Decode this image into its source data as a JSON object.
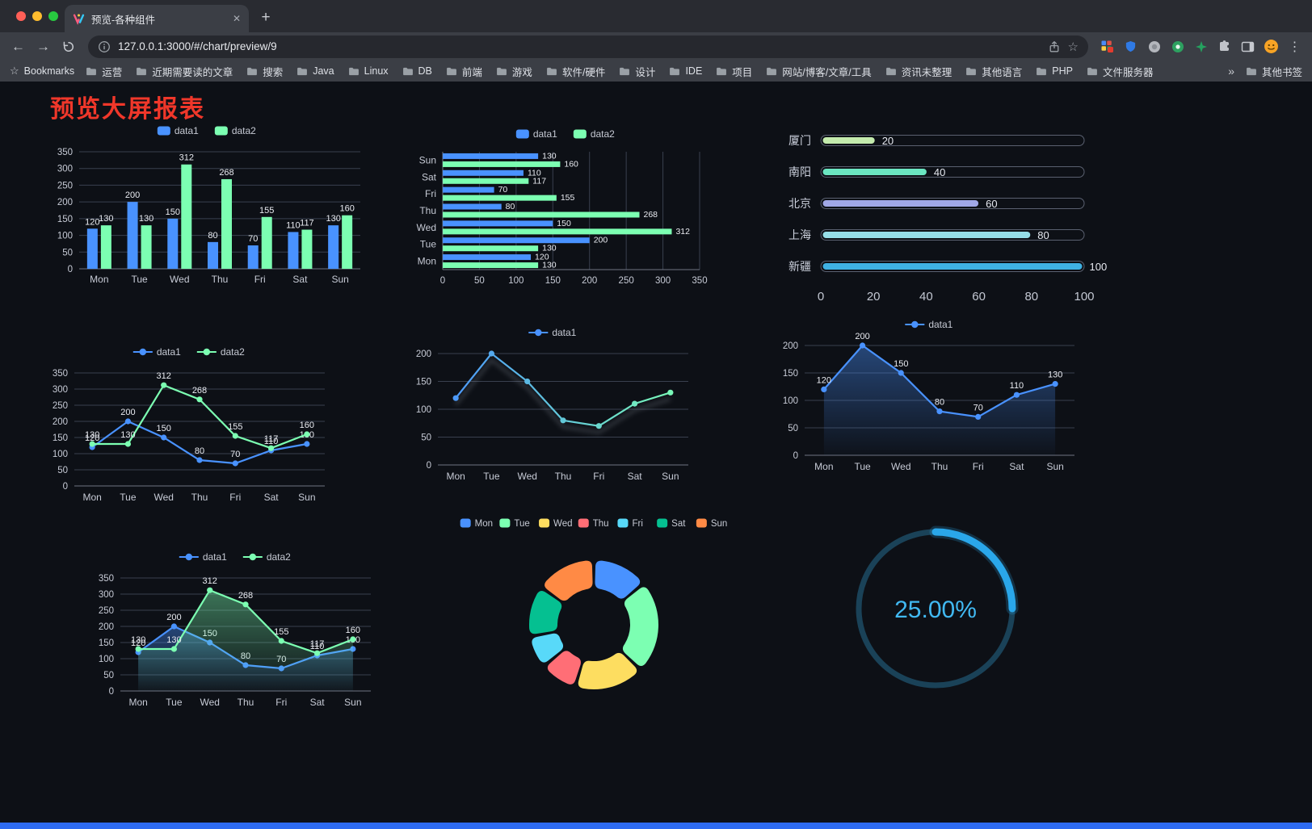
{
  "browser": {
    "tab_title": "预览-各种组件",
    "url": "127.0.0.1:3000/#/chart/preview/9",
    "new_tab_label": "+",
    "close_tab_label": "✕",
    "back_label": "←",
    "forward_label": "→",
    "menu_label": "⋮",
    "star_label": "☆",
    "overflow_label": "»",
    "bookmarks_label": "Bookmarks",
    "bookmarks": [
      "运营",
      "近期需要读的文章",
      "搜索",
      "Java",
      "Linux",
      "DB",
      "前端",
      "游戏",
      "软件/硬件",
      "设计",
      "IDE",
      "项目",
      "网站/博客/文章/工具",
      "资讯未整理",
      "其他语言",
      "PHP",
      "文件服务器"
    ],
    "other_bookmarks": "其他书签"
  },
  "page": {
    "title": "预览大屏报表",
    "title_color": "#f0372a",
    "background": "#0d1016",
    "footer_color": "#2e6bf0"
  },
  "chart_data": [
    {
      "id": "grouped-bar",
      "type": "bar",
      "legend": true,
      "value_labels": true,
      "categories": [
        "Mon",
        "Tue",
        "Wed",
        "Thu",
        "Fri",
        "Sat",
        "Sun"
      ],
      "ylim": [
        0,
        350
      ],
      "ystep": 50,
      "series": [
        {
          "name": "data1",
          "color": "#4992ff",
          "values": [
            120,
            200,
            150,
            80,
            70,
            110,
            130
          ]
        },
        {
          "name": "data2",
          "color": "#7cffb2",
          "values": [
            130,
            130,
            312,
            268,
            155,
            117,
            160
          ]
        }
      ]
    },
    {
      "id": "grouped-horizontal-bar",
      "type": "hbar",
      "legend": true,
      "value_labels": true,
      "categories": [
        "Mon",
        "Tue",
        "Wed",
        "Thu",
        "Fri",
        "Sat",
        "Sun"
      ],
      "xlim": [
        0,
        350
      ],
      "xstep": 50,
      "series": [
        {
          "name": "data1",
          "color": "#4992ff",
          "values": [
            120,
            200,
            150,
            80,
            70,
            110,
            130
          ]
        },
        {
          "name": "data2",
          "color": "#7cffb2",
          "values": [
            130,
            130,
            312,
            268,
            155,
            117,
            160
          ]
        }
      ]
    },
    {
      "id": "capsule-rank",
      "type": "capsule",
      "xlim": [
        0,
        100
      ],
      "xticks": [
        0,
        20,
        40,
        60,
        80,
        100
      ],
      "rows": [
        {
          "label": "厦门",
          "value": 20,
          "color": "#c4ebad"
        },
        {
          "label": "南阳",
          "value": 40,
          "color": "#6be6c1"
        },
        {
          "label": "北京",
          "value": 60,
          "color": "#a0a7e6"
        },
        {
          "label": "上海",
          "value": 80,
          "color": "#96dee8"
        },
        {
          "label": "新疆",
          "value": 100,
          "color": "#3fb1e3"
        }
      ]
    },
    {
      "id": "double-line",
      "type": "line",
      "legend": true,
      "value_labels": true,
      "categories": [
        "Mon",
        "Tue",
        "Wed",
        "Thu",
        "Fri",
        "Sat",
        "Sun"
      ],
      "ylim": [
        0,
        350
      ],
      "ystep": 50,
      "series": [
        {
          "name": "data1",
          "color": "#4992ff",
          "values": [
            120,
            200,
            150,
            80,
            70,
            110,
            130
          ]
        },
        {
          "name": "data2",
          "color": "#7cffb2",
          "values": [
            130,
            130,
            312,
            268,
            155,
            117,
            160
          ]
        }
      ]
    },
    {
      "id": "gradient-line",
      "type": "line",
      "legend": true,
      "value_labels": false,
      "shadow": true,
      "categories": [
        "Mon",
        "Tue",
        "Wed",
        "Thu",
        "Fri",
        "Sat",
        "Sun"
      ],
      "ylim": [
        0,
        200
      ],
      "ystep": 50,
      "series": [
        {
          "name": "data1",
          "color": "#4992ff",
          "color_end": "#7cffb2",
          "values": [
            120,
            200,
            150,
            80,
            70,
            110,
            130
          ]
        }
      ]
    },
    {
      "id": "area-line",
      "type": "line",
      "legend": true,
      "value_labels": true,
      "categories": [
        "Mon",
        "Tue",
        "Wed",
        "Thu",
        "Fri",
        "Sat",
        "Sun"
      ],
      "ylim": [
        0,
        200
      ],
      "ystep": 50,
      "series": [
        {
          "name": "data1",
          "color": "#4992ff",
          "area": true,
          "values": [
            120,
            200,
            150,
            80,
            70,
            110,
            130
          ]
        }
      ]
    },
    {
      "id": "double-area-line",
      "type": "line",
      "legend": true,
      "value_labels": true,
      "categories": [
        "Mon",
        "Tue",
        "Wed",
        "Thu",
        "Fri",
        "Sat",
        "Sun"
      ],
      "ylim": [
        0,
        350
      ],
      "ystep": 50,
      "series": [
        {
          "name": "data1",
          "color": "#4992ff",
          "area": true,
          "values": [
            120,
            200,
            150,
            80,
            70,
            110,
            130
          ]
        },
        {
          "name": "data2",
          "color": "#7cffb2",
          "area": true,
          "values": [
            130,
            130,
            312,
            268,
            155,
            117,
            160
          ]
        }
      ]
    },
    {
      "id": "donut",
      "type": "donut",
      "legend": true,
      "items": [
        {
          "name": "Mon",
          "value": 120,
          "color": "#4992ff"
        },
        {
          "name": "Tue",
          "value": 200,
          "color": "#7cffb2"
        },
        {
          "name": "Wed",
          "value": 150,
          "color": "#fddd60"
        },
        {
          "name": "Thu",
          "value": 80,
          "color": "#ff6e76"
        },
        {
          "name": "Fri",
          "value": 70,
          "color": "#58d9f9"
        },
        {
          "name": "Sat",
          "value": 110,
          "color": "#05c091"
        },
        {
          "name": "Sun",
          "value": 130,
          "color": "#ff8a45"
        }
      ]
    },
    {
      "id": "ring-progress",
      "type": "gauge",
      "value": 25,
      "label": "25.00%",
      "color": "#2aa7ea",
      "track_color": "#1a4258",
      "label_color": "#41b9f2"
    }
  ]
}
